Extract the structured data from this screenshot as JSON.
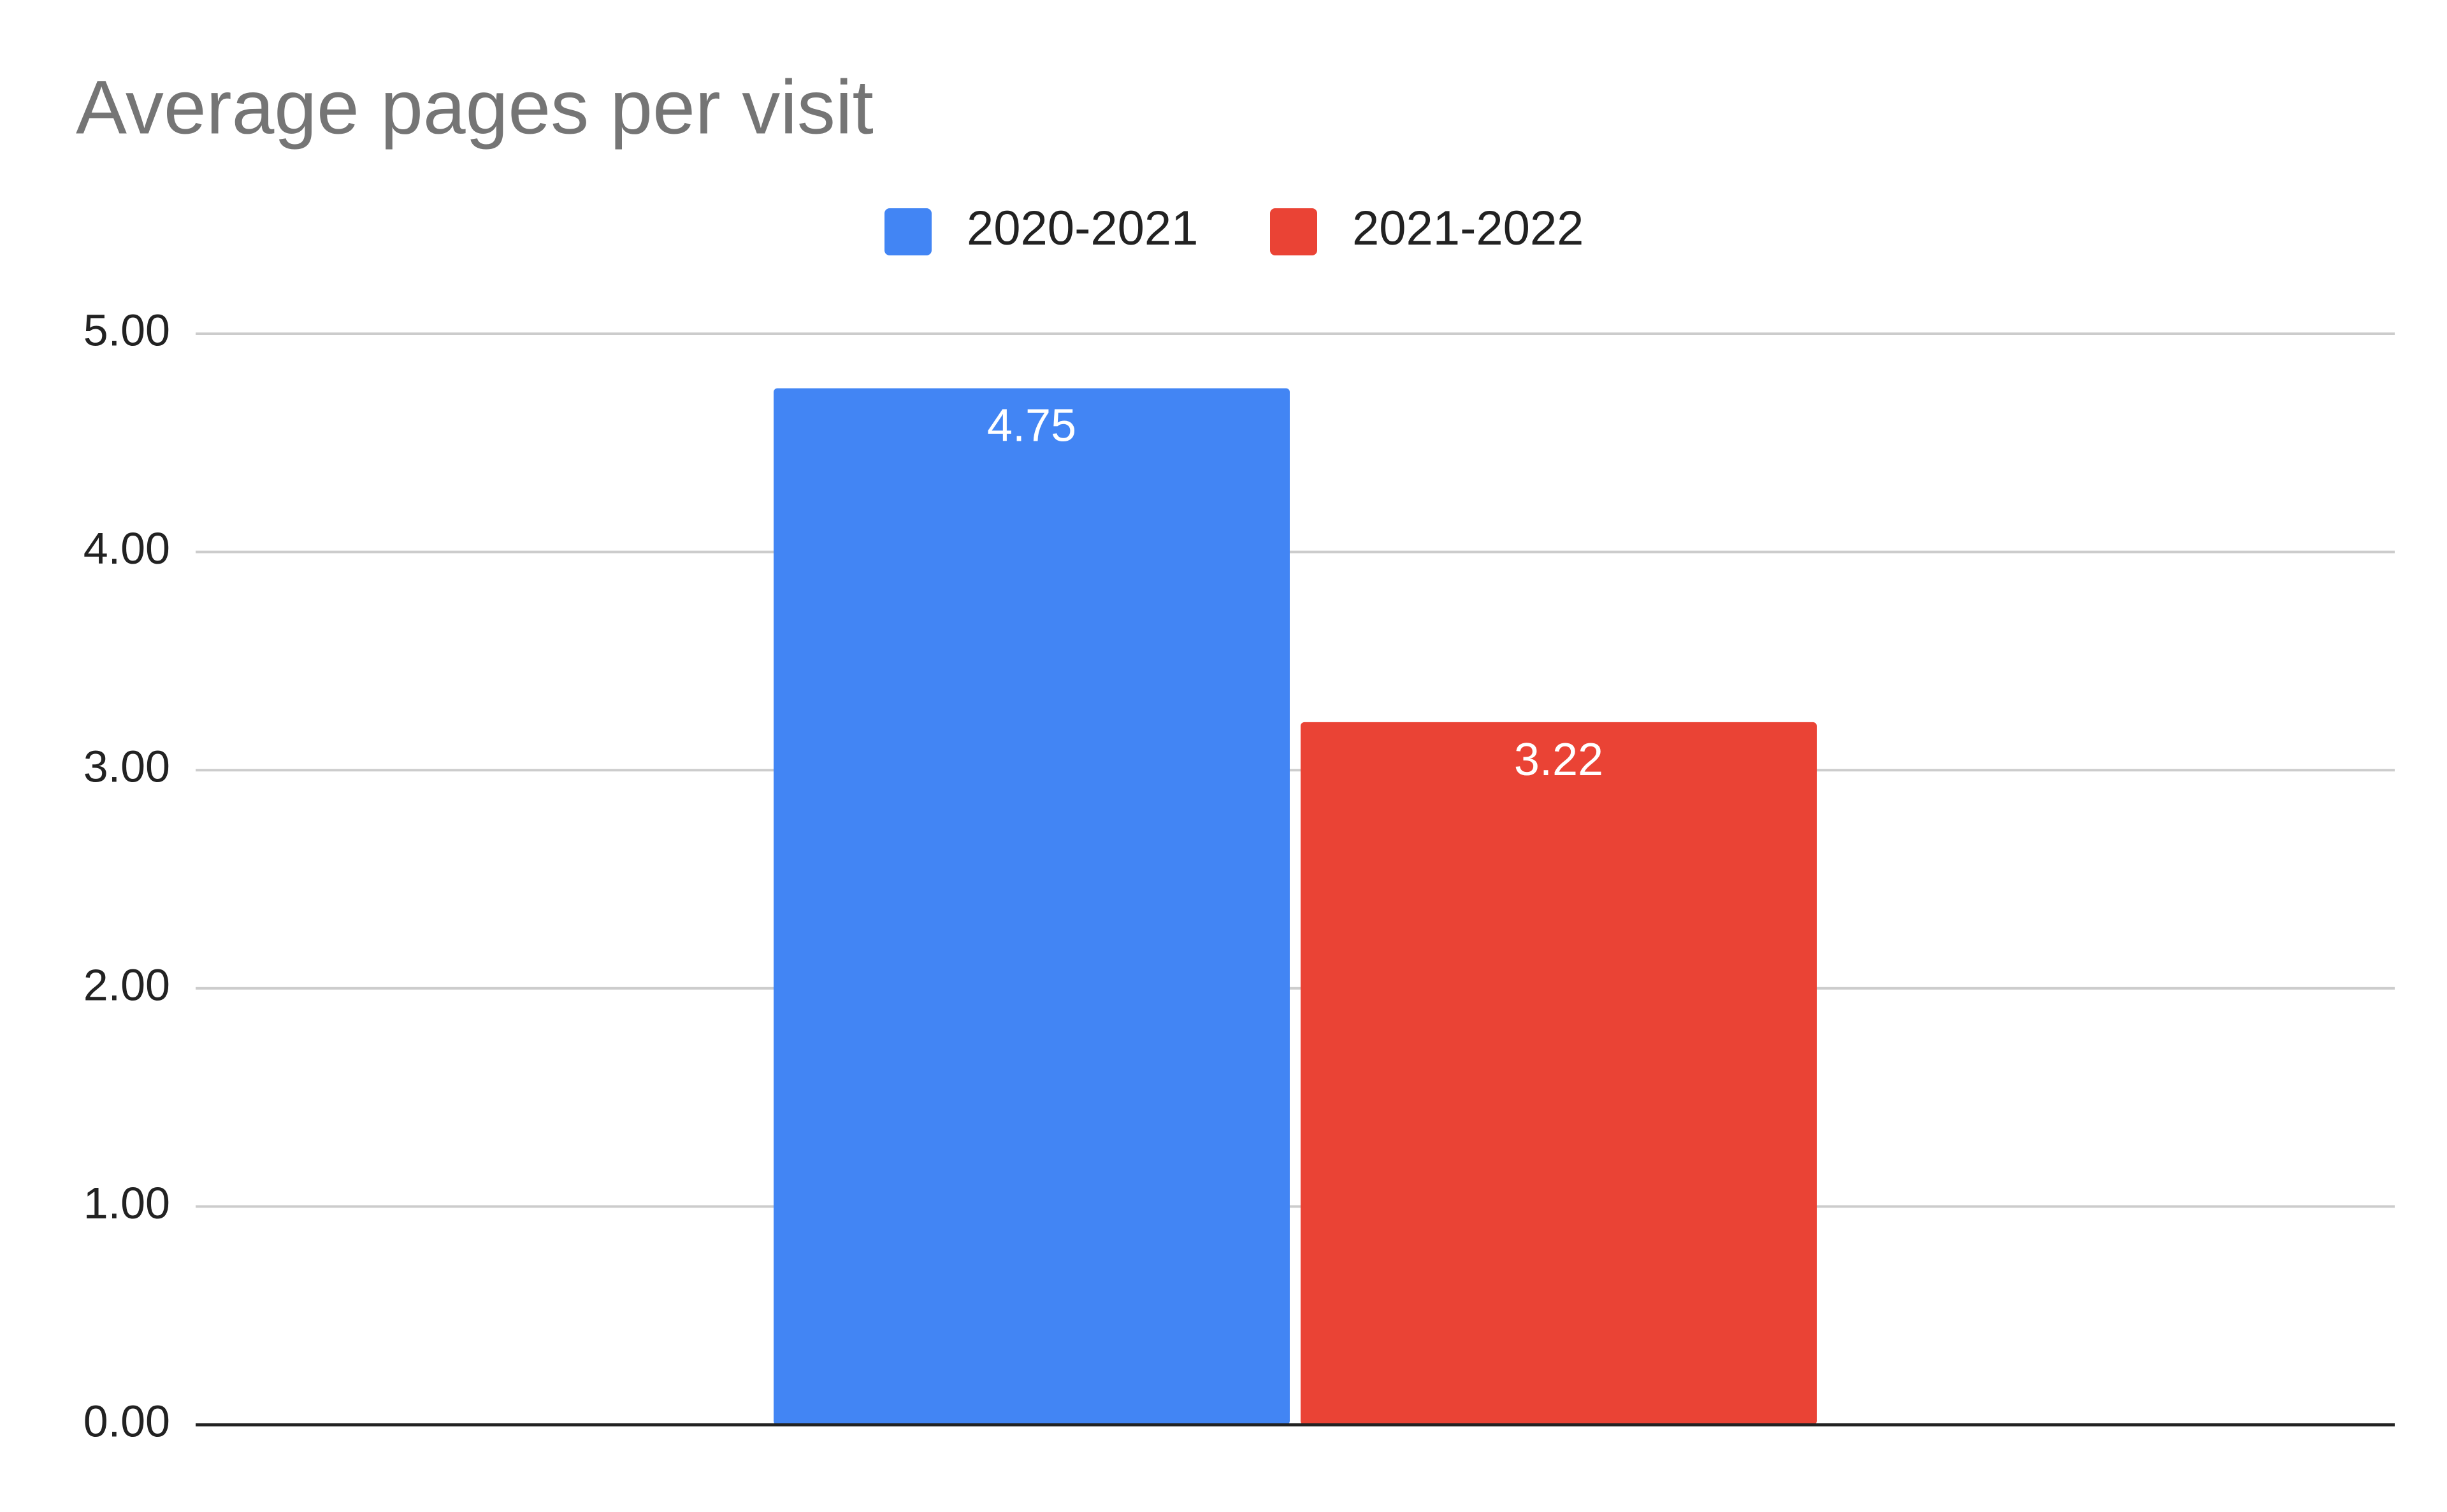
{
  "chart_data": {
    "type": "bar",
    "title": "Average pages per visit",
    "categories": [
      null
    ],
    "series": [
      {
        "name": "2020-2021",
        "color": "#4285f4",
        "values": [
          4.75
        ]
      },
      {
        "name": "2021-2022",
        "color": "#ea4335",
        "values": [
          3.22
        ]
      }
    ],
    "ylim": [
      0,
      5
    ],
    "yticks": [
      {
        "value": 0,
        "label": "0.00"
      },
      {
        "value": 1,
        "label": "1.00"
      },
      {
        "value": 2,
        "label": "2.00"
      },
      {
        "value": 3,
        "label": "3.00"
      },
      {
        "value": 4,
        "label": "4.00"
      },
      {
        "value": 5,
        "label": "5.00"
      }
    ],
    "grid": true,
    "legend": "top"
  }
}
